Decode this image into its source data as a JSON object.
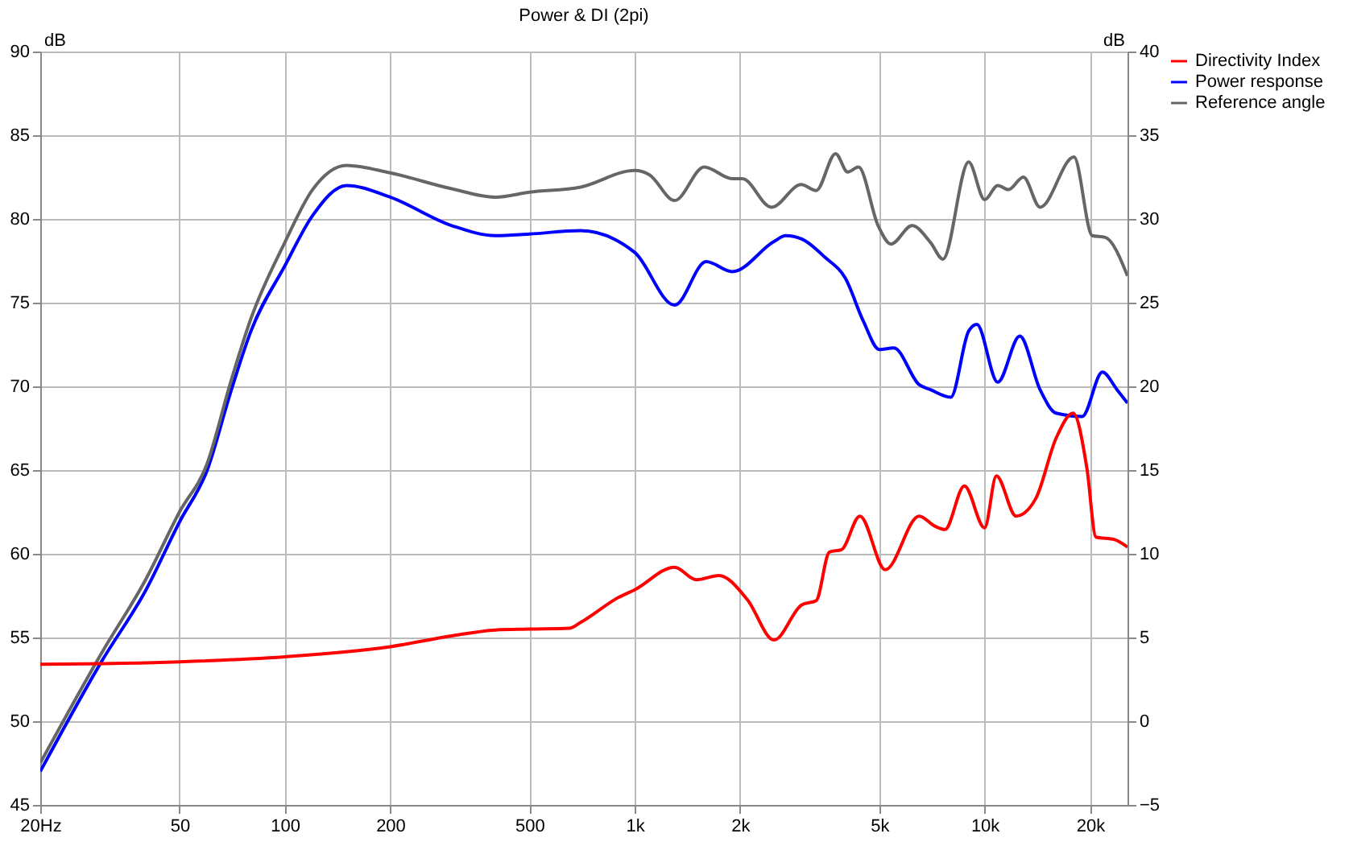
{
  "chart_data": {
    "type": "line",
    "title": "Power & DI (2pi)",
    "ylabel": "dB",
    "y2label": "dB",
    "xlim": [
      20,
      25600
    ],
    "ylim": [
      45,
      90
    ],
    "y2lim": [
      -5,
      40
    ],
    "log": "x",
    "grid": true,
    "legend": "right",
    "xticks": [
      {
        "value": 20,
        "label": "20Hz"
      },
      50,
      100,
      200,
      500,
      {
        "value": 1000,
        "label": "1k"
      },
      {
        "value": 2000,
        "label": "2k"
      },
      {
        "value": 5000,
        "label": "5k"
      },
      {
        "value": 10000,
        "label": "10k"
      },
      {
        "value": 20000,
        "label": "20k"
      }
    ],
    "yticks": [
      45,
      50,
      55,
      60,
      65,
      70,
      75,
      80,
      85,
      90
    ],
    "y2ticks": [
      -5,
      0,
      5,
      10,
      15,
      20,
      25,
      30,
      35,
      40
    ],
    "series": [
      {
        "name": "Directivity Index",
        "color": "#ff0000",
        "axis": "y2",
        "x": [
          20,
          50,
          100,
          200,
          300,
          400,
          500,
          650,
          700,
          900,
          1000,
          1300,
          1500,
          1740,
          2100,
          2500,
          3000,
          3300,
          3600,
          3900,
          4400,
          5200,
          6500,
          7200,
          7700,
          8750,
          10000,
          10800,
          12300,
          14000,
          16000,
          17900,
          19600,
          20800,
          23500,
          25600
        ],
        "values": [
          3.4,
          3.55,
          3.85,
          4.45,
          5.1,
          5.45,
          5.5,
          5.55,
          5.9,
          7.4,
          7.85,
          9.2,
          8.45,
          8.7,
          7.25,
          4.85,
          6.95,
          7.2,
          10.1,
          10.25,
          12.25,
          9.05,
          12.25,
          11.65,
          11.45,
          14.05,
          11.55,
          14.65,
          12.25,
          13.3,
          16.9,
          18.4,
          15.1,
          11.0,
          10.85,
          10.4
        ]
      },
      {
        "name": "Power response",
        "color": "#0000ff",
        "x": [
          20,
          30,
          40,
          50,
          60,
          70,
          80,
          100,
          120,
          150,
          200,
          300,
          400,
          500,
          700,
          1000,
          1300,
          1600,
          1900,
          2500,
          2700,
          3000,
          3500,
          4000,
          4500,
          5000,
          5500,
          6500,
          7000,
          8000,
          9000,
          9500,
          10900,
          12600,
          14400,
          16000,
          19000,
          21700,
          23900,
          25600
        ],
        "values": [
          47.0,
          53.6,
          57.8,
          61.9,
          65.0,
          69.65,
          73.3,
          77.2,
          80.2,
          82.0,
          81.3,
          79.6,
          79.0,
          79.1,
          79.3,
          78.0,
          74.85,
          77.45,
          76.85,
          78.65,
          79.0,
          78.8,
          77.7,
          76.45,
          73.9,
          72.2,
          72.3,
          70.1,
          69.8,
          69.35,
          73.3,
          73.7,
          70.25,
          73.0,
          69.8,
          68.4,
          68.2,
          70.85,
          69.8,
          69.0
        ]
      },
      {
        "name": "Reference angle",
        "color": "#666666",
        "x": [
          20,
          30,
          40,
          50,
          60,
          70,
          80,
          100,
          120,
          150,
          200,
          300,
          400,
          500,
          700,
          1000,
          1100,
          1300,
          1580,
          1900,
          2030,
          2460,
          2990,
          3300,
          3750,
          4060,
          4360,
          4960,
          5400,
          6200,
          7000,
          7600,
          9000,
          10000,
          10900,
          11700,
          12900,
          14400,
          18000,
          20300,
          22100,
          25600
        ],
        "values": [
          47.5,
          54.1,
          58.45,
          62.5,
          65.4,
          70.25,
          74.05,
          78.6,
          81.75,
          83.2,
          82.75,
          81.8,
          81.3,
          81.6,
          81.9,
          82.9,
          82.65,
          81.1,
          83.1,
          82.4,
          82.4,
          80.7,
          82.05,
          81.7,
          83.9,
          82.8,
          83.1,
          79.6,
          78.5,
          79.6,
          78.6,
          77.6,
          83.4,
          81.15,
          82.0,
          81.75,
          82.5,
          80.7,
          83.7,
          79.0,
          78.9,
          76.6
        ]
      }
    ]
  }
}
